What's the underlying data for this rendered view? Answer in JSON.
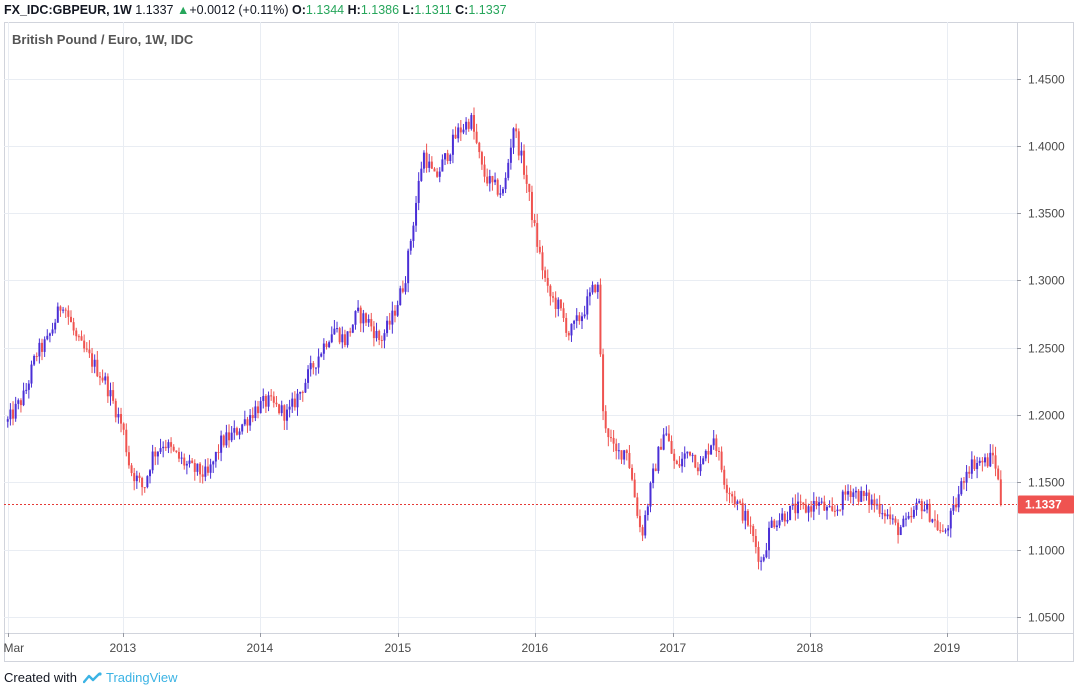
{
  "header": {
    "symbol": "FX_IDC:GBPEUR, 1W",
    "last": "1.1337",
    "change": "+0.0012 (+0.11%)",
    "open_label": "O:",
    "open": "1.1344",
    "high_label": "H:",
    "high": "1.1386",
    "low_label": "L:",
    "low": "1.1311",
    "close_label": "C:",
    "close": "1.1337"
  },
  "chart_title": "British Pound / Euro, 1W, IDC",
  "price_badge": "1.1337",
  "footer": {
    "created_with": "Created with",
    "brand": "TradingView"
  },
  "colors": {
    "up": "#4a2fd6",
    "down": "#ef5350",
    "grid": "#e9edf3",
    "axis_text": "#4a4a4a",
    "badge": "#ef5350",
    "last_line": "#e53935"
  },
  "chart_data": {
    "type": "candlestick",
    "title": "British Pound / Euro, 1W, IDC",
    "x_ticks": [
      "Mar",
      "2013",
      "2014",
      "2015",
      "2016",
      "2017",
      "2018",
      "2019"
    ],
    "y_ticks": [
      "1.0500",
      "1.1000",
      "1.1500",
      "1.2000",
      "1.2500",
      "1.3000",
      "1.3500",
      "1.4000",
      "1.4500"
    ],
    "y_range": [
      1.038,
      1.492
    ],
    "last_value": 1.1337,
    "grid": true,
    "approx_weekly_path": [
      [
        "2012-03-01",
        1.195
      ],
      [
        "2012-04-15",
        1.215
      ],
      [
        "2012-05-15",
        1.245
      ],
      [
        "2012-06-15",
        1.255
      ],
      [
        "2012-07-25",
        1.285
      ],
      [
        "2012-09-01",
        1.255
      ],
      [
        "2012-10-10",
        1.24
      ],
      [
        "2012-11-15",
        1.225
      ],
      [
        "2013-01-01",
        1.19
      ],
      [
        "2013-01-20",
        1.16
      ],
      [
        "2013-02-25",
        1.145
      ],
      [
        "2013-03-20",
        1.17
      ],
      [
        "2013-04-20",
        1.18
      ],
      [
        "2013-05-20",
        1.17
      ],
      [
        "2013-07-01",
        1.16
      ],
      [
        "2013-08-15",
        1.155
      ],
      [
        "2013-09-20",
        1.18
      ],
      [
        "2013-10-20",
        1.185
      ],
      [
        "2013-11-20",
        1.195
      ],
      [
        "2013-12-20",
        1.205
      ],
      [
        "2014-01-20",
        1.21
      ],
      [
        "2014-03-15",
        1.2
      ],
      [
        "2014-05-01",
        1.225
      ],
      [
        "2014-06-15",
        1.25
      ],
      [
        "2014-07-15",
        1.265
      ],
      [
        "2014-08-15",
        1.255
      ],
      [
        "2014-09-15",
        1.275
      ],
      [
        "2014-10-15",
        1.27
      ],
      [
        "2014-11-15",
        1.255
      ],
      [
        "2014-12-15",
        1.27
      ],
      [
        "2015-01-20",
        1.3
      ],
      [
        "2015-02-15",
        1.35
      ],
      [
        "2015-03-10",
        1.395
      ],
      [
        "2015-04-10",
        1.375
      ],
      [
        "2015-05-15",
        1.395
      ],
      [
        "2015-06-10",
        1.41
      ],
      [
        "2015-07-15",
        1.42
      ],
      [
        "2015-08-15",
        1.38
      ],
      [
        "2015-09-10",
        1.37
      ],
      [
        "2015-10-10",
        1.365
      ],
      [
        "2015-11-05",
        1.415
      ],
      [
        "2015-12-05",
        1.38
      ],
      [
        "2016-01-05",
        1.33
      ],
      [
        "2016-02-05",
        1.29
      ],
      [
        "2016-03-05",
        1.28
      ],
      [
        "2016-04-01",
        1.26
      ],
      [
        "2016-05-05",
        1.275
      ],
      [
        "2016-06-15",
        1.3
      ],
      [
        "2016-06-30",
        1.2
      ],
      [
        "2016-08-01",
        1.17
      ],
      [
        "2016-09-01",
        1.175
      ],
      [
        "2016-10-10",
        1.11
      ],
      [
        "2016-11-10",
        1.155
      ],
      [
        "2016-12-10",
        1.19
      ],
      [
        "2017-01-10",
        1.16
      ],
      [
        "2017-02-15",
        1.175
      ],
      [
        "2017-03-15",
        1.16
      ],
      [
        "2017-04-20",
        1.185
      ],
      [
        "2017-05-20",
        1.15
      ],
      [
        "2017-06-20",
        1.135
      ],
      [
        "2017-07-20",
        1.12
      ],
      [
        "2017-08-25",
        1.09
      ],
      [
        "2017-09-20",
        1.12
      ],
      [
        "2017-10-20",
        1.125
      ],
      [
        "2017-11-20",
        1.13
      ],
      [
        "2017-12-20",
        1.13
      ],
      [
        "2018-01-20",
        1.135
      ],
      [
        "2018-03-01",
        1.125
      ],
      [
        "2018-04-15",
        1.145
      ],
      [
        "2018-05-15",
        1.14
      ],
      [
        "2018-06-15",
        1.135
      ],
      [
        "2018-07-15",
        1.13
      ],
      [
        "2018-08-20",
        1.115
      ],
      [
        "2018-09-20",
        1.12
      ],
      [
        "2018-10-20",
        1.135
      ],
      [
        "2018-11-20",
        1.125
      ],
      [
        "2018-12-20",
        1.11
      ],
      [
        "2019-01-20",
        1.13
      ],
      [
        "2019-02-20",
        1.16
      ],
      [
        "2019-03-15",
        1.165
      ],
      [
        "2019-04-15",
        1.165
      ],
      [
        "2019-05-05",
        1.17
      ],
      [
        "2019-05-25",
        1.1337
      ]
    ]
  }
}
